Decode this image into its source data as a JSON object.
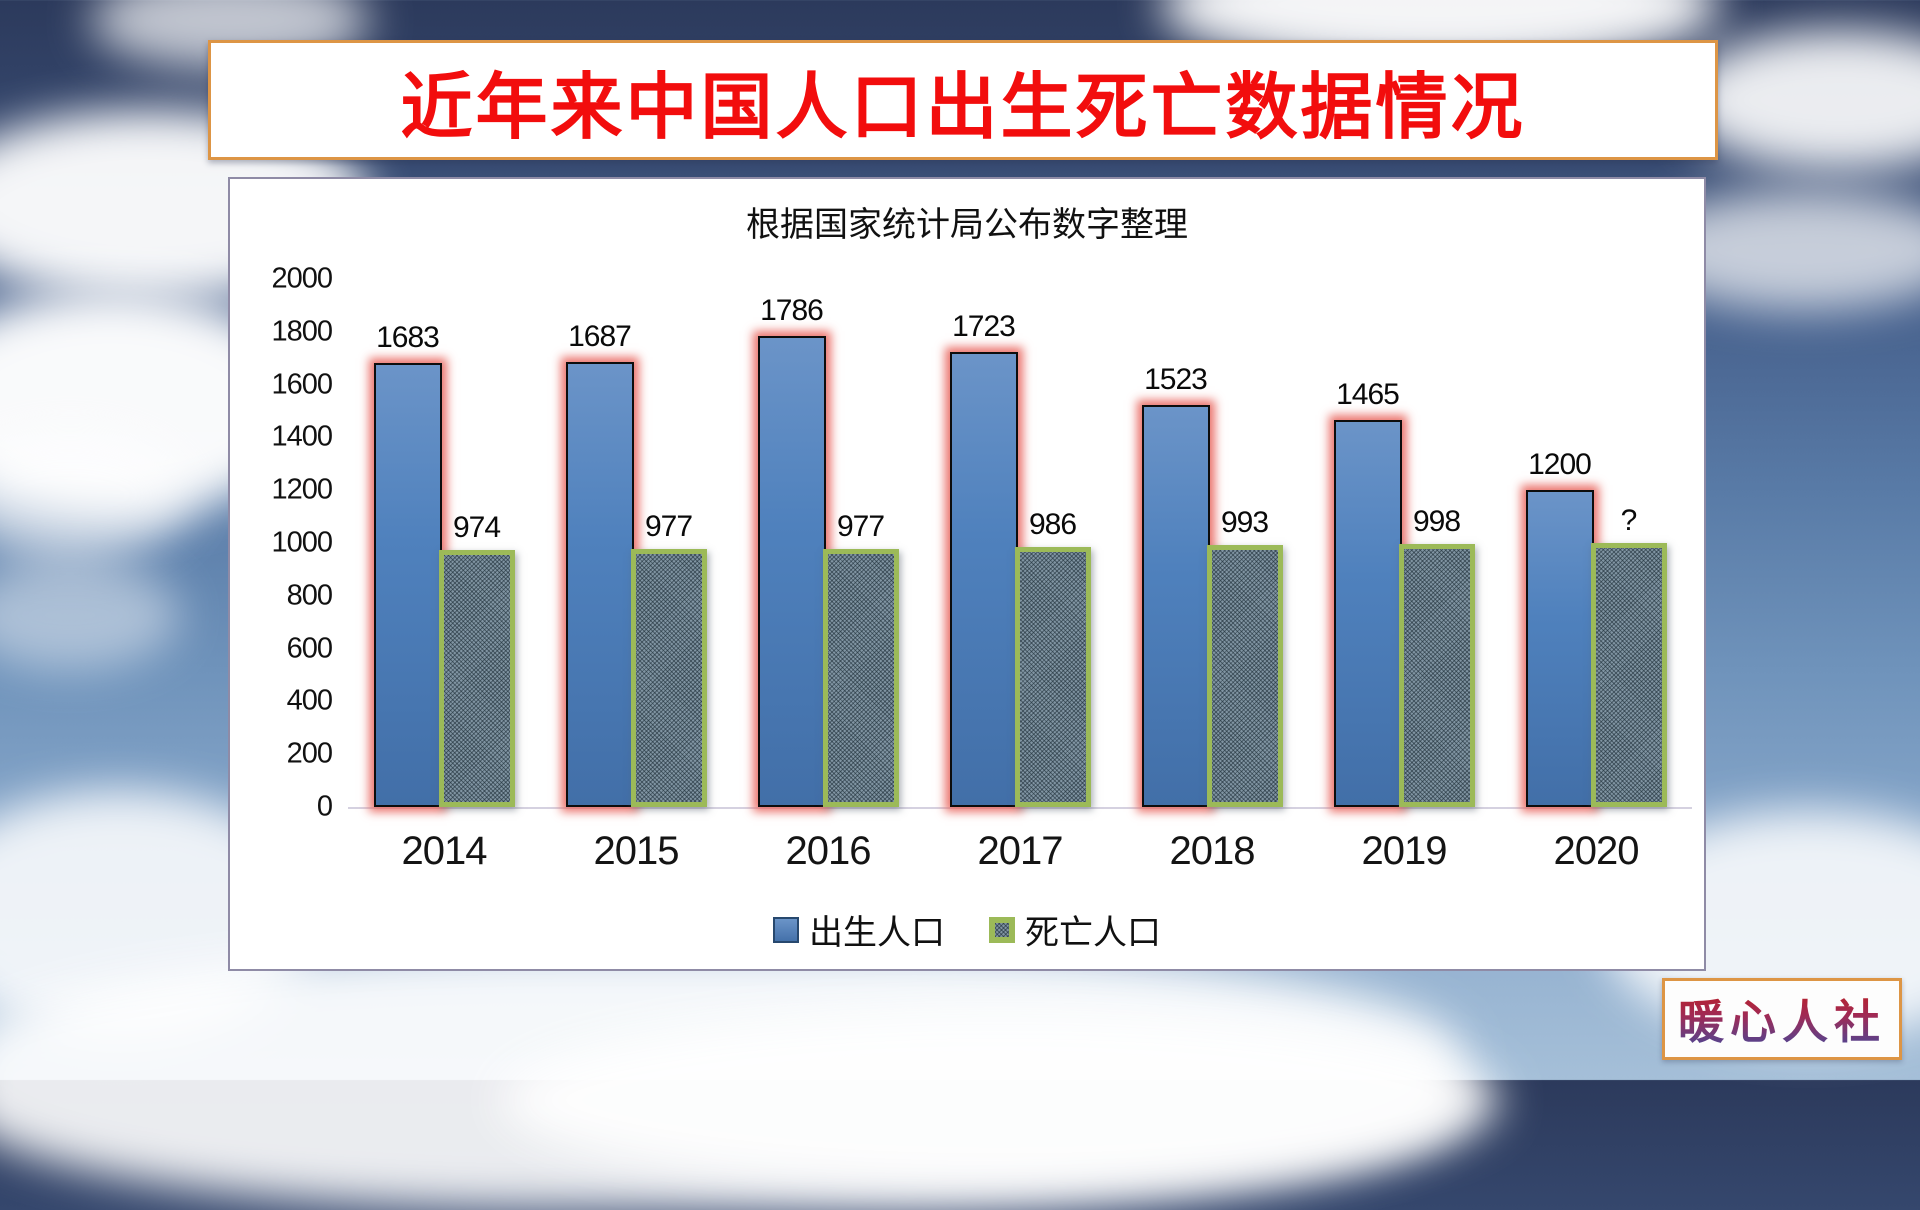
{
  "page": {
    "banner_title": "近年来中国人口出生死亡数据情况",
    "watermark": "暖心人社"
  },
  "colors": {
    "banner_title_red": "#f20d0d",
    "banner_border_orange": "#dd9545",
    "birth_bar_blue": "#4f81bd",
    "birth_bar_glow_pink": "#e96962",
    "death_bar_border_green": "#9cba58",
    "death_bar_fill_gray": "#8094a2",
    "watermark_gradient_top": "#c01f1f",
    "watermark_gradient_bottom": "#414a9e"
  },
  "chart_data": {
    "type": "bar",
    "title": "根据国家统计局公布数字整理",
    "categories": [
      "2014",
      "2015",
      "2016",
      "2017",
      "2018",
      "2019",
      "2020"
    ],
    "series": [
      {
        "name": "出生人口",
        "values": [
          1683,
          1687,
          1786,
          1723,
          1523,
          1465,
          1200
        ],
        "labels": [
          "1683",
          "1687",
          "1786",
          "1723",
          "1523",
          "1465",
          "1200"
        ],
        "color": "#4f81bd"
      },
      {
        "name": "死亡人口",
        "values": [
          974,
          977,
          977,
          986,
          993,
          998,
          1000
        ],
        "labels": [
          "974",
          "977",
          "977",
          "986",
          "993",
          "998",
          "?"
        ],
        "color": "#9cba58"
      }
    ],
    "ylim": [
      0,
      2000
    ],
    "ytick_step": 200,
    "yticks": [
      "2000",
      "1800",
      "1600",
      "1400",
      "1200",
      "1000",
      "800",
      "600",
      "400",
      "200",
      "0"
    ],
    "grid": false,
    "legend_position": "bottom"
  }
}
